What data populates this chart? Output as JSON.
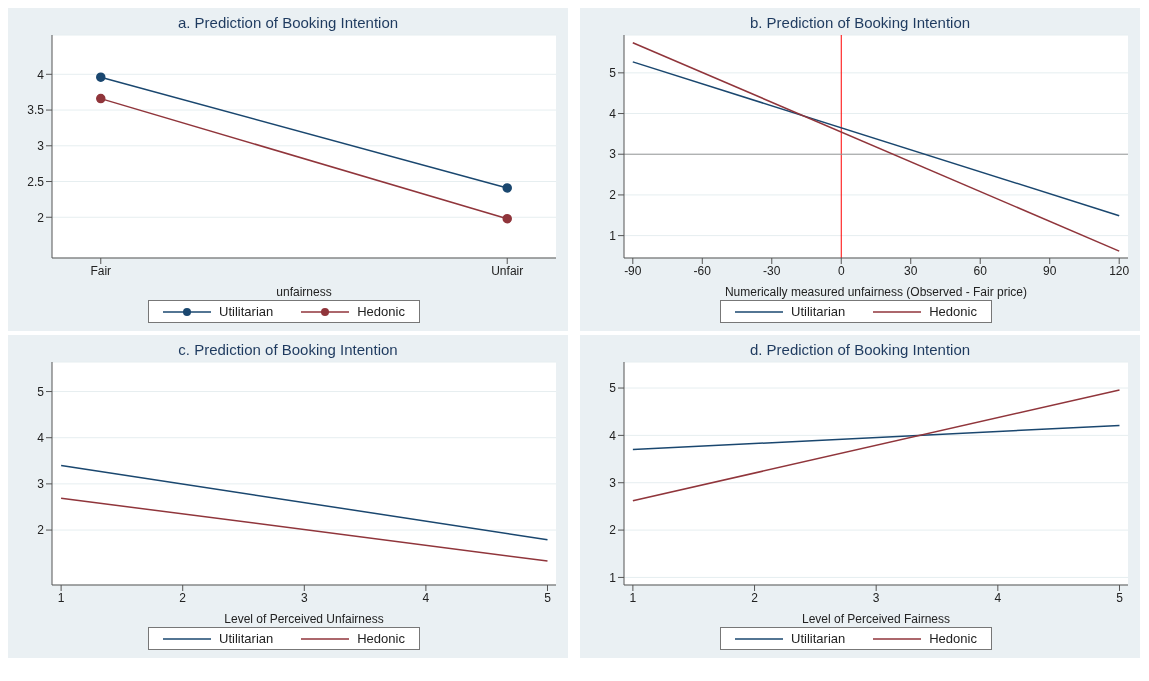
{
  "chart_data": [
    {
      "type": "line",
      "title": "a. Prediction of Booking Intention",
      "xlabel": "unfairness",
      "categories": [
        "Fair",
        "Unfair"
      ],
      "ylim": [
        1.43,
        4.55
      ],
      "yticks": [
        2,
        2.5,
        3,
        3.5,
        4
      ],
      "grid": "y",
      "legend": "bottom",
      "marker": "circle",
      "series": [
        {
          "name": "Utilitarian",
          "color": "#1a476f",
          "values": [
            3.96,
            2.41
          ]
        },
        {
          "name": "Hedonic",
          "color": "#90353b",
          "values": [
            3.66,
            1.98
          ]
        }
      ]
    },
    {
      "type": "line",
      "title": "b. Prediction of Booking Intention",
      "xlabel": "Numerically measured unfairness (Observed - Fair price)",
      "x": [
        -90,
        120
      ],
      "xlim": [
        -93.8,
        123.8
      ],
      "xticks": [
        -90,
        -60,
        -30,
        0,
        30,
        60,
        90,
        120
      ],
      "ylim": [
        0.45,
        5.93
      ],
      "yticks": [
        1,
        2,
        3,
        4,
        5
      ],
      "grid": "y",
      "legend": "bottom",
      "ref_lines": [
        {
          "axis": "x",
          "value": 0,
          "color": "#ff0000"
        },
        {
          "axis": "y",
          "value": 3,
          "color": "#999999"
        }
      ],
      "series": [
        {
          "name": "Utilitarian",
          "color": "#1a476f",
          "values": [
            5.27,
            1.49
          ]
        },
        {
          "name": "Hedonic",
          "color": "#90353b",
          "values": [
            5.74,
            0.62
          ]
        }
      ]
    },
    {
      "type": "line",
      "title": "c. Prediction of Booking Intention",
      "xlabel": "Level of Perceived Unfairness",
      "x": [
        1,
        5
      ],
      "xlim": [
        0.925,
        5.07
      ],
      "xticks": [
        1,
        2,
        3,
        4,
        5
      ],
      "ylim": [
        0.81,
        5.64
      ],
      "yticks": [
        2,
        3,
        4,
        5
      ],
      "grid": "y",
      "legend": "bottom",
      "series": [
        {
          "name": "Utilitarian",
          "color": "#1a476f",
          "values": [
            3.4,
            1.79
          ]
        },
        {
          "name": "Hedonic",
          "color": "#90353b",
          "values": [
            2.69,
            1.33
          ]
        }
      ]
    },
    {
      "type": "line",
      "title": "d. Prediction of Booking Intention",
      "xlabel": "Level of Perceived Fairness",
      "x": [
        1,
        5
      ],
      "xlim": [
        0.927,
        5.07
      ],
      "xticks": [
        1,
        2,
        3,
        4,
        5
      ],
      "ylim": [
        0.84,
        5.55
      ],
      "yticks": [
        1,
        2,
        3,
        4,
        5
      ],
      "grid": "y",
      "legend": "bottom",
      "series": [
        {
          "name": "Utilitarian",
          "color": "#1a476f",
          "values": [
            3.7,
            4.21
          ]
        },
        {
          "name": "Hedonic",
          "color": "#90353b",
          "values": [
            2.62,
            4.96
          ]
        }
      ]
    }
  ]
}
